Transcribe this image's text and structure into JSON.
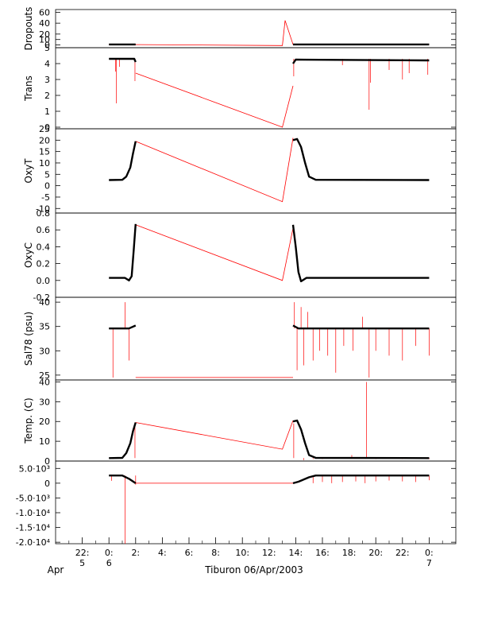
{
  "chart_data": {
    "type": "line",
    "x_axis": {
      "tick_labels": [
        [
          "22:",
          "5"
        ],
        [
          "0:",
          "6"
        ],
        [
          "2:",
          ""
        ],
        [
          "4:",
          ""
        ],
        [
          "6:",
          ""
        ],
        [
          "8:",
          ""
        ],
        [
          "10:",
          ""
        ],
        [
          "12:",
          ""
        ],
        [
          "14:",
          ""
        ],
        [
          "16:",
          ""
        ],
        [
          "18:",
          ""
        ],
        [
          "20:",
          ""
        ],
        [
          "22:",
          ""
        ],
        [
          "0:",
          "7"
        ]
      ],
      "tick_hours": [
        -2,
        0,
        2,
        4,
        6,
        8,
        10,
        12,
        14,
        16,
        18,
        20,
        22,
        24
      ],
      "start_label": "Apr",
      "title": "Tiburon 06/Apr/2003",
      "xlim_hours": [
        -4,
        26
      ]
    },
    "panels": [
      {
        "ylabel": "Dropouts",
        "ylim": [
          -5,
          65
        ],
        "ticks": [
          0,
          10,
          20,
          40,
          60
        ],
        "tick_labels": [
          "0",
          "10",
          "20",
          "40",
          "60"
        ],
        "black": [
          [
            0,
            1
          ],
          [
            2,
            1
          ],
          [
            13.8,
            1
          ],
          [
            24,
            1
          ]
        ],
        "red": [
          [
            0,
            1
          ],
          [
            13,
            -1
          ],
          [
            13.2,
            45
          ],
          [
            13.8,
            1
          ],
          [
            24,
            1
          ]
        ],
        "spikes": []
      },
      {
        "ylabel": "Trans",
        "ylim": [
          -0.1,
          5
        ],
        "ticks": [
          0,
          1,
          2,
          3,
          4,
          5
        ],
        "tick_labels": [
          "0",
          "1",
          "2",
          "3",
          "4",
          "5"
        ],
        "black": [
          [
            0,
            4.3
          ],
          [
            1.9,
            4.3
          ],
          [
            2.0,
            4.1
          ],
          [
            13.8,
            4.0
          ],
          [
            14.0,
            4.25
          ],
          [
            24,
            4.2
          ]
        ],
        "red": [
          [
            2.0,
            3.4
          ],
          [
            13,
            0
          ],
          [
            13.8,
            2.6
          ]
        ],
        "spikes": [
          [
            0.5,
            3.5
          ],
          [
            0.55,
            1.5
          ],
          [
            0.8,
            3.8
          ],
          [
            1.95,
            2.9
          ],
          [
            13.85,
            3.2
          ],
          [
            17.5,
            3.9
          ],
          [
            19.5,
            1.1
          ],
          [
            19.6,
            2.8
          ],
          [
            21.0,
            3.6
          ],
          [
            22.0,
            3.0
          ],
          [
            22.5,
            3.4
          ],
          [
            23.9,
            3.3
          ]
        ]
      },
      {
        "ylabel": "OxyT",
        "ylim": [
          -12,
          25
        ],
        "ticks": [
          -10,
          -5,
          0,
          5,
          10,
          15,
          20,
          25
        ],
        "tick_labels": [
          "-10",
          "-5",
          "0",
          "5",
          "10",
          "15",
          "20",
          "25"
        ],
        "black": [
          [
            0,
            2.5
          ],
          [
            1.0,
            2.6
          ],
          [
            1.3,
            4
          ],
          [
            1.6,
            8
          ],
          [
            1.8,
            14
          ],
          [
            2.0,
            19.5
          ],
          [
            13.8,
            20
          ],
          [
            14.1,
            20.5
          ],
          [
            14.4,
            17
          ],
          [
            14.7,
            10
          ],
          [
            15.0,
            4
          ],
          [
            15.5,
            2.6
          ],
          [
            24,
            2.5
          ]
        ],
        "red": [
          [
            2.0,
            19.5
          ],
          [
            13,
            -7
          ],
          [
            13.8,
            21
          ]
        ],
        "spikes": []
      },
      {
        "ylabel": "OxyC",
        "ylim": [
          -0.2,
          0.8
        ],
        "ticks": [
          -0.2,
          0.0,
          0.2,
          0.4,
          0.6,
          0.8
        ],
        "tick_labels": [
          "-0.2",
          "0.0",
          "0.2",
          "0.4",
          "0.6",
          "0.8"
        ],
        "black": [
          [
            0,
            0.03
          ],
          [
            1.2,
            0.03
          ],
          [
            1.5,
            0.0
          ],
          [
            1.7,
            0.05
          ],
          [
            1.85,
            0.35
          ],
          [
            2.0,
            0.67
          ],
          [
            13.8,
            0.66
          ],
          [
            14.0,
            0.4
          ],
          [
            14.2,
            0.1
          ],
          [
            14.4,
            -0.01
          ],
          [
            14.8,
            0.03
          ],
          [
            24,
            0.03
          ]
        ],
        "red": [
          [
            2.0,
            0.66
          ],
          [
            13,
            0
          ],
          [
            13.8,
            0.62
          ]
        ],
        "spikes": []
      },
      {
        "ylabel": "Sal78 (psu)",
        "ylim": [
          24,
          41
        ],
        "ticks": [
          25,
          30,
          35,
          40
        ],
        "tick_labels": [
          "25",
          "30",
          "35",
          "40"
        ],
        "black": [
          [
            0,
            34.6
          ],
          [
            1.5,
            34.6
          ],
          [
            2.0,
            35.2
          ],
          [
            13.8,
            35.2
          ],
          [
            14.2,
            34.6
          ],
          [
            24,
            34.6
          ]
        ],
        "red": [
          [
            2.0,
            24.5
          ],
          [
            13.8,
            24.5
          ]
        ],
        "spikes": [
          [
            0.3,
            24.5
          ],
          [
            1.2,
            40
          ],
          [
            1.5,
            28
          ],
          [
            13.9,
            40
          ],
          [
            14.1,
            26
          ],
          [
            14.4,
            39
          ],
          [
            14.6,
            27
          ],
          [
            14.9,
            38
          ],
          [
            15.3,
            28
          ],
          [
            15.8,
            30
          ],
          [
            16.4,
            29
          ],
          [
            17.0,
            25.5
          ],
          [
            17.6,
            31
          ],
          [
            18.3,
            30
          ],
          [
            19.0,
            37
          ],
          [
            19.5,
            24.5
          ],
          [
            20.0,
            30
          ],
          [
            21.0,
            29
          ],
          [
            22.0,
            28
          ],
          [
            23.0,
            31
          ],
          [
            24.0,
            29
          ]
        ]
      },
      {
        "ylabel": "Temp. (C)",
        "ylim": [
          0,
          41
        ],
        "ticks": [
          0,
          10,
          20,
          30,
          40
        ],
        "tick_labels": [
          "0",
          "10",
          "20",
          "30",
          "40"
        ],
        "black": [
          [
            0,
            1.5
          ],
          [
            1.0,
            1.6
          ],
          [
            1.3,
            4
          ],
          [
            1.6,
            9
          ],
          [
            1.8,
            15
          ],
          [
            2.0,
            19.5
          ],
          [
            13.8,
            20
          ],
          [
            14.1,
            20.5
          ],
          [
            14.4,
            16
          ],
          [
            14.7,
            9
          ],
          [
            15.0,
            3
          ],
          [
            15.5,
            1.6
          ],
          [
            24,
            1.5
          ]
        ],
        "red": [
          [
            2.0,
            19.5
          ],
          [
            13,
            6
          ],
          [
            13.8,
            20.5
          ]
        ],
        "spikes": [
          [
            0.3,
            1
          ],
          [
            1.95,
            19
          ],
          [
            13.85,
            19
          ],
          [
            14.6,
            0.5
          ],
          [
            15.3,
            1
          ],
          [
            16.0,
            1
          ],
          [
            18.2,
            3
          ],
          [
            19.3,
            40
          ],
          [
            20.0,
            1
          ],
          [
            22.0,
            1
          ],
          [
            24.0,
            1
          ]
        ]
      },
      {
        "ylabel": "",
        "ylim": [
          -20500,
          7500
        ],
        "ticks": [
          5000,
          0,
          -5000,
          -10000,
          -15000,
          -20000
        ],
        "tick_labels": [
          "5.0·10³",
          "0",
          "-5.0·10³",
          "-1.0·10⁴",
          "-1.5·10⁴",
          "-2.0·10⁴"
        ],
        "black": [
          [
            0,
            2600
          ],
          [
            1.0,
            2600
          ],
          [
            1.5,
            1500
          ],
          [
            2.0,
            0
          ],
          [
            13.8,
            0
          ],
          [
            14.2,
            500
          ],
          [
            15.0,
            2000
          ],
          [
            15.5,
            2600
          ],
          [
            24,
            2600
          ]
        ],
        "red": [
          [
            2.0,
            0
          ],
          [
            13.8,
            0
          ]
        ],
        "spikes": [
          [
            0.2,
            800
          ],
          [
            1.2,
            -20500
          ],
          [
            2.0,
            -500
          ],
          [
            15.3,
            0
          ],
          [
            16.0,
            400
          ],
          [
            16.7,
            0
          ],
          [
            17.5,
            400
          ],
          [
            18.5,
            600
          ],
          [
            19.2,
            0
          ],
          [
            20.0,
            600
          ],
          [
            21.0,
            900
          ],
          [
            22.0,
            600
          ],
          [
            23.0,
            400
          ],
          [
            24.0,
            1000
          ]
        ]
      }
    ]
  }
}
